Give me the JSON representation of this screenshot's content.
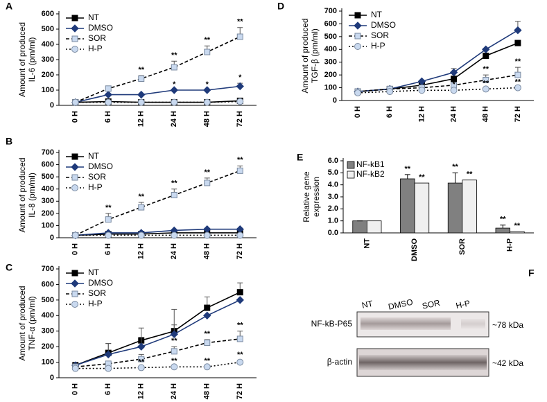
{
  "chart_data": [
    {
      "panel": "A",
      "type": "line",
      "y_label": [
        "Amount of produced",
        "IL-6 (pm/ml)"
      ],
      "categories": [
        "0 H",
        "6 H",
        "12 H",
        "24 H",
        "48 H",
        "72 H"
      ],
      "ylim": [
        0,
        600
      ],
      "yticks": [
        0,
        100,
        200,
        300,
        400,
        500,
        600
      ],
      "legend": "upper left",
      "series": [
        {
          "name": "NT",
          "color": "#000000",
          "line_color": "#000000",
          "marker": "square",
          "dash": "solid",
          "values": [
            20,
            25,
            20,
            20,
            20,
            30
          ]
        },
        {
          "name": "DMSO",
          "color": "#1f3a7a",
          "line_color": "#1f3a7a",
          "marker": "diamond",
          "dash": "solid",
          "values": [
            20,
            70,
            70,
            100,
            100,
            125
          ],
          "errors": [
            0,
            0,
            0,
            0,
            0,
            20
          ],
          "significance": [
            null,
            null,
            null,
            "*",
            "*",
            "*"
          ]
        },
        {
          "name": "SOR",
          "color": "#c9d9ef",
          "line_color": "#000000",
          "marker": "square",
          "dash": "dashed",
          "values": [
            20,
            110,
            175,
            250,
            350,
            450
          ],
          "errors": [
            0,
            0,
            20,
            40,
            40,
            60
          ],
          "significance": [
            null,
            null,
            "**",
            "**",
            "**",
            "**"
          ]
        },
        {
          "name": "H-P",
          "color": "#c9d9ef",
          "line_color": "#000000",
          "marker": "circle",
          "dash": "dotted",
          "values": [
            20,
            20,
            20,
            20,
            20,
            25
          ]
        }
      ]
    },
    {
      "panel": "B",
      "type": "line",
      "y_label": [
        "Amount of produced",
        "IL-8 (pm/ml)"
      ],
      "categories": [
        "0 H",
        "6 H",
        "12 H",
        "24 H",
        "48 H",
        "72 H"
      ],
      "ylim": [
        0,
        700
      ],
      "yticks": [
        0,
        100,
        200,
        300,
        400,
        500,
        600,
        700
      ],
      "legend": "upper left",
      "series": [
        {
          "name": "NT",
          "color": "#000000",
          "line_color": "#000000",
          "marker": "square",
          "dash": "solid",
          "values": [
            20,
            30,
            30,
            40,
            40,
            40
          ]
        },
        {
          "name": "DMSO",
          "color": "#1f3a7a",
          "line_color": "#1f3a7a",
          "marker": "diamond",
          "dash": "solid",
          "values": [
            20,
            40,
            40,
            60,
            70,
            70
          ]
        },
        {
          "name": "SOR",
          "color": "#c9d9ef",
          "line_color": "#000000",
          "marker": "square",
          "dash": "dashed",
          "values": [
            20,
            150,
            250,
            350,
            450,
            550
          ],
          "errors": [
            0,
            50,
            40,
            50,
            40,
            40
          ],
          "significance": [
            null,
            "**",
            "**",
            "**",
            "**",
            "**"
          ]
        },
        {
          "name": "H-P",
          "color": "#c9d9ef",
          "line_color": "#000000",
          "marker": "circle",
          "dash": "dotted",
          "values": [
            20,
            20,
            20,
            20,
            20,
            20
          ]
        }
      ]
    },
    {
      "panel": "C",
      "type": "line",
      "y_label": [
        "Amount of produced",
        "TNF-α (pm/ml)"
      ],
      "categories": [
        "0 H",
        "6 H",
        "12 H",
        "24 H",
        "48 H",
        "72 H"
      ],
      "ylim": [
        0,
        700
      ],
      "yticks": [
        0,
        100,
        200,
        300,
        400,
        500,
        600,
        700
      ],
      "legend": "upper left",
      "series": [
        {
          "name": "NT",
          "color": "#000000",
          "line_color": "#000000",
          "marker": "square",
          "dash": "solid",
          "values": [
            80,
            160,
            240,
            300,
            450,
            550
          ],
          "errors": [
            20,
            60,
            80,
            140,
            70,
            60
          ]
        },
        {
          "name": "DMSO",
          "color": "#1f3a7a",
          "line_color": "#1f3a7a",
          "marker": "diamond",
          "dash": "solid",
          "values": [
            80,
            150,
            200,
            280,
            400,
            500
          ],
          "errors": [
            0,
            70,
            60,
            60,
            0,
            0
          ]
        },
        {
          "name": "SOR",
          "color": "#c9d9ef",
          "line_color": "#000000",
          "marker": "square",
          "dash": "dashed",
          "values": [
            70,
            90,
            120,
            170,
            225,
            250
          ],
          "errors": [
            20,
            0,
            30,
            30,
            20,
            50
          ],
          "significance": [
            null,
            null,
            null,
            "**",
            "**",
            "**"
          ]
        },
        {
          "name": "H-P",
          "color": "#c9d9ef",
          "line_color": "#000000",
          "marker": "circle",
          "dash": "dotted",
          "values": [
            60,
            60,
            65,
            70,
            70,
            100
          ],
          "errors": [
            0,
            0,
            0,
            0,
            0,
            10
          ],
          "significance": [
            null,
            null,
            "**",
            "**",
            "**",
            "**"
          ]
        }
      ]
    },
    {
      "panel": "D",
      "type": "line",
      "y_label": [
        "Amount of produced",
        "TGF-β (pm/ml)"
      ],
      "categories": [
        "0 H",
        "6 H",
        "12 H",
        "24 H",
        "48 H",
        "72 H"
      ],
      "ylim": [
        0,
        700
      ],
      "yticks": [
        0,
        100,
        200,
        300,
        400,
        500,
        600,
        700
      ],
      "legend": "upper left",
      "series": [
        {
          "name": "NT",
          "color": "#000000",
          "line_color": "#000000",
          "marker": "square",
          "dash": "solid",
          "values": [
            70,
            90,
            120,
            170,
            350,
            450
          ]
        },
        {
          "name": "DMSO",
          "color": "#1f3a7a",
          "line_color": "#1f3a7a",
          "marker": "diamond",
          "dash": "solid",
          "values": [
            70,
            90,
            150,
            220,
            400,
            550
          ],
          "errors": [
            0,
            0,
            0,
            30,
            0,
            70
          ]
        },
        {
          "name": "SOR",
          "color": "#c9d9ef",
          "line_color": "#000000",
          "marker": "square",
          "dash": "dashed",
          "values": [
            70,
            90,
            100,
            120,
            160,
            200
          ],
          "errors": [
            0,
            0,
            0,
            0,
            40,
            60
          ],
          "significance": [
            null,
            null,
            null,
            null,
            "**",
            "**"
          ]
        },
        {
          "name": "H-P",
          "color": "#c9d9ef",
          "line_color": "#000000",
          "marker": "circle",
          "dash": "dotted",
          "values": [
            60,
            70,
            80,
            80,
            90,
            100
          ],
          "significance": [
            null,
            null,
            null,
            "*",
            "**",
            "**"
          ]
        }
      ]
    },
    {
      "panel": "E",
      "type": "bar",
      "y_label": [
        "Relative gene",
        "expression"
      ],
      "categories": [
        "NT",
        "DMSO",
        "SOR",
        "H-P"
      ],
      "ylim": [
        0,
        6
      ],
      "yticks": [
        {
          "value": 0,
          "label": "0.0"
        },
        {
          "value": 1,
          "label": "1.0"
        },
        {
          "value": 2,
          "label": "2.0"
        },
        {
          "value": 3,
          "label": "3.0"
        },
        {
          "value": 4,
          "label": "4.0"
        },
        {
          "value": 5,
          "label": "5.0"
        },
        {
          "value": 6,
          "label": "6.0"
        }
      ],
      "legend": "upper left",
      "series": [
        {
          "name": "NF-kB1",
          "color": "#808080",
          "values": [
            1.0,
            4.5,
            4.15,
            0.4
          ],
          "errors": [
            0,
            0.35,
            0.85,
            0.25
          ],
          "significance": [
            null,
            "**",
            "**",
            "**"
          ]
        },
        {
          "name": "NF-kB2",
          "color": "#f0f0f0",
          "values": [
            1.0,
            4.15,
            4.4,
            0.1
          ],
          "significance": [
            null,
            "**",
            "**",
            "**"
          ]
        }
      ]
    }
  ],
  "blot": {
    "panel": "F",
    "lanes": [
      "NT",
      "DMSO",
      "SOR",
      "H-P"
    ],
    "rows": [
      {
        "protein": "NF-kB-P65",
        "size": "~78 kDa"
      },
      {
        "protein": "β-actin",
        "size": "~42 kDa"
      }
    ]
  }
}
